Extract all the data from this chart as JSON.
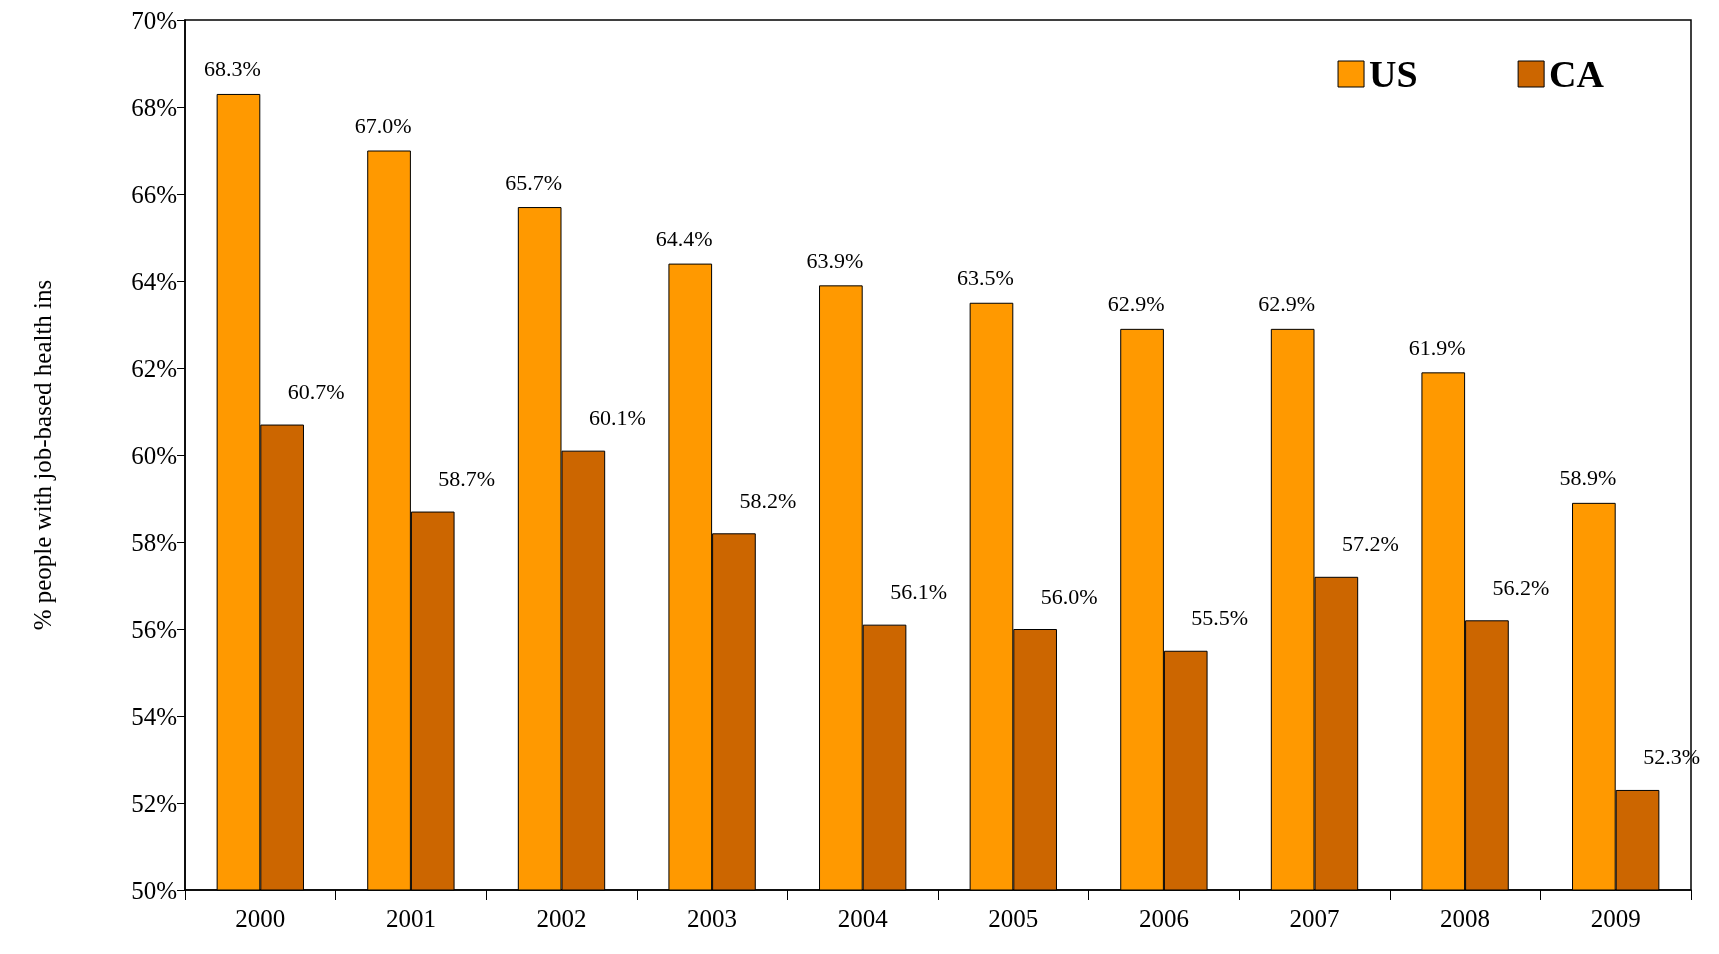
{
  "chart_data": {
    "type": "bar",
    "ylabel": "% people with job-based health ins",
    "categories": [
      "2000",
      "2001",
      "2002",
      "2003",
      "2004",
      "2005",
      "2006",
      "2007",
      "2008",
      "2009"
    ],
    "series": [
      {
        "name": "US",
        "color": "#ff9900",
        "values": [
          68.3,
          67.0,
          65.7,
          64.4,
          63.9,
          63.5,
          62.9,
          62.9,
          61.9,
          58.9
        ],
        "value_labels": [
          "68.3%",
          "67.0%",
          "65.7%",
          "64.4%",
          "63.9%",
          "63.5%",
          "62.9%",
          "62.9%",
          "61.9%",
          "58.9%"
        ]
      },
      {
        "name": "CA",
        "color": "#cc6600",
        "values": [
          60.7,
          58.7,
          60.1,
          58.2,
          56.1,
          56.0,
          55.5,
          57.2,
          56.2,
          52.3
        ],
        "value_labels": [
          "60.7%",
          "58.7%",
          "60.1%",
          "58.2%",
          "56.1%",
          "56.0%",
          "55.5%",
          "57.2%",
          "56.2%",
          "52.3%"
        ]
      }
    ],
    "ylim": [
      50,
      70
    ],
    "yticks": [
      {
        "value": 50,
        "label": "50%"
      },
      {
        "value": 52,
        "label": "52%"
      },
      {
        "value": 54,
        "label": "54%"
      },
      {
        "value": 56,
        "label": "56%"
      },
      {
        "value": 58,
        "label": "58%"
      },
      {
        "value": 60,
        "label": "60%"
      },
      {
        "value": 62,
        "label": "62%"
      },
      {
        "value": 64,
        "label": "64%"
      },
      {
        "value": 66,
        "label": "66%"
      },
      {
        "value": 68,
        "label": "68%"
      },
      {
        "value": 70,
        "label": "70%"
      }
    ],
    "legend": "top right",
    "grid": false
  }
}
